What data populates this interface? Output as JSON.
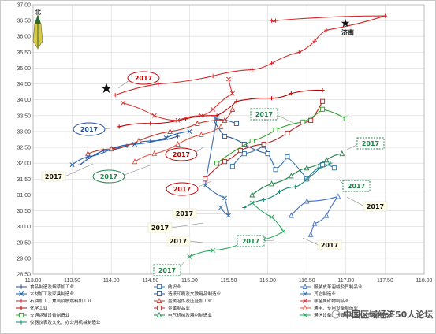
{
  "chart_data": {
    "type": "line",
    "xlim": [
      113.0,
      118.0
    ],
    "ylim": [
      28.5,
      37.0
    ],
    "x_ticks": [
      "113.00",
      "113.50",
      "114.00",
      "114.50",
      "115.00",
      "115.50",
      "116.00",
      "116.50",
      "117.00",
      "117.50",
      "118.00"
    ],
    "y_ticks": [
      "28.50",
      "29.00",
      "29.50",
      "30.00",
      "30.50",
      "31.00",
      "31.50",
      "32.00",
      "32.50",
      "33.00",
      "33.50",
      "34.00",
      "34.50",
      "35.00",
      "35.50",
      "36.00",
      "36.50",
      "37.00"
    ],
    "grid": true,
    "compass_label": "北",
    "city_label": "济南",
    "year_label": "2017",
    "watermark": "中国区域经济50人论坛",
    "series": [
      {
        "name": "食品制造及烟草加工业",
        "color": "#1f4e9e",
        "marker": "plus",
        "x": [
          113.6,
          113.9,
          114.2,
          114.5,
          114.85
        ],
        "y": [
          31.95,
          32.4,
          32.55,
          32.7,
          32.85
        ]
      },
      {
        "name": "纺织业",
        "color": "#2e75b6",
        "marker": "square",
        "x": [
          115.55,
          115.7,
          115.95,
          116.1,
          116.25,
          116.5,
          116.7,
          116.85
        ],
        "y": [
          31.9,
          32.3,
          32.55,
          31.8,
          32.2,
          31.5,
          31.95,
          31.85
        ]
      },
      {
        "name": "服装皮革羽绒及其制品业",
        "color": "#4472c4",
        "marker": "triangle",
        "x": [
          116.55,
          116.6,
          116.75,
          116.9,
          116.5,
          116.3
        ],
        "y": [
          29.75,
          30.1,
          30.35,
          30.95,
          30.8,
          30.35
        ]
      },
      {
        "name": "木材加工及家具制造业",
        "color": "#1a5fb4",
        "marker": "x",
        "x": [
          113.5,
          113.7,
          114.0,
          114.3,
          114.7,
          115.0
        ],
        "y": [
          31.95,
          32.2,
          32.45,
          32.6,
          32.8,
          33.0
        ]
      },
      {
        "name": "造纸印刷及文教用品制造业",
        "color": "#2f5597",
        "marker": "square",
        "x": [
          115.6,
          115.3,
          115.45,
          115.7,
          116.0
        ],
        "y": [
          33.25,
          33.4,
          32.85,
          32.6,
          32.3
        ]
      },
      {
        "name": "其它制造业",
        "color": "#3c6fb0",
        "marker": "x",
        "x": [
          115.35,
          115.2,
          115.45,
          115.5,
          115.4
        ],
        "y": [
          33.4,
          31.3,
          30.9,
          30.35,
          30.6
        ]
      },
      {
        "name": "石油加工、焦炭及核燃料加工业",
        "color": "#d62728",
        "marker": "plus",
        "x": [
          114.05,
          114.6,
          115.3,
          115.8,
          116.05,
          116.4,
          116.6,
          116.75,
          117.5,
          116.1,
          116.05
        ],
        "y": [
          34.15,
          34.5,
          34.75,
          34.95,
          35.15,
          35.5,
          35.85,
          36.2,
          36.65,
          36.5,
          36.5
        ]
      },
      {
        "name": "化学工业",
        "color": "#c00000",
        "marker": "plus",
        "x": [
          114.1,
          114.5,
          114.95,
          115.35,
          115.6,
          116.05,
          116.3,
          116.7
        ],
        "y": [
          33.15,
          33.25,
          33.4,
          33.5,
          33.95,
          34.05,
          34.2,
          34.3
        ]
      },
      {
        "name": "非金属矿物制品业",
        "color": "#e03030",
        "marker": "x",
        "x": [
          114.15,
          114.55,
          114.85,
          115.15,
          115.3,
          115.55,
          115.5
        ],
        "y": [
          33.9,
          33.5,
          33.35,
          33.5,
          33.7,
          34.2,
          34.65
        ]
      },
      {
        "name": "金属冶炼及压延加工业",
        "color": "#c0392b",
        "marker": "triangle",
        "x": [
          113.7,
          114.0,
          114.35,
          114.75,
          115.1,
          115.45,
          115.55
        ],
        "y": [
          32.3,
          32.45,
          32.7,
          33.0,
          33.25,
          33.35,
          33.7
        ]
      },
      {
        "name": "金属制品业",
        "color": "#b22222",
        "marker": "square",
        "x": [
          115.2,
          115.45,
          115.65,
          115.95,
          116.25,
          116.55,
          116.7
        ],
        "y": [
          31.5,
          32.05,
          32.4,
          32.6,
          32.95,
          33.35,
          33.95
        ]
      },
      {
        "name": "通用、专用设备制造业",
        "color": "#e74c3c",
        "marker": "triangle",
        "x": [
          114.3,
          114.55,
          114.85,
          115.15,
          115.4
        ],
        "y": [
          32.05,
          32.3,
          32.6,
          32.9,
          33.15
        ]
      },
      {
        "name": "交通运输设备制造业",
        "color": "#2ca02c",
        "marker": "square",
        "x": [
          115.35,
          115.8,
          116.1,
          116.45,
          116.7,
          117.0
        ],
        "y": [
          32.0,
          32.7,
          33.05,
          33.3,
          33.7,
          33.4
        ]
      },
      {
        "name": "电气机械及器材制造业",
        "color": "#1e8449",
        "marker": "triangle",
        "x": [
          115.8,
          116.05,
          116.3,
          116.5,
          116.75,
          116.95
        ],
        "y": [
          31.0,
          31.35,
          31.6,
          31.85,
          32.1,
          32.3
        ]
      },
      {
        "name": "通信设备、计算机及其他电子设备制造业",
        "color": "#27ae60",
        "marker": "x",
        "x": [
          115.0,
          115.3,
          115.65,
          115.95,
          116.2,
          116.05,
          115.8
        ],
        "y": [
          29.05,
          29.25,
          29.45,
          29.6,
          29.85,
          30.3,
          30.75
        ]
      },
      {
        "name": "仪器仪表及文化、办公用机械制造业",
        "color": "#138d75",
        "marker": "plus",
        "x": [
          115.7,
          115.95,
          116.15,
          116.35,
          116.5,
          116.65,
          116.8
        ],
        "y": [
          30.6,
          30.85,
          31.1,
          31.25,
          31.5,
          31.85,
          32.0
        ]
      }
    ]
  }
}
